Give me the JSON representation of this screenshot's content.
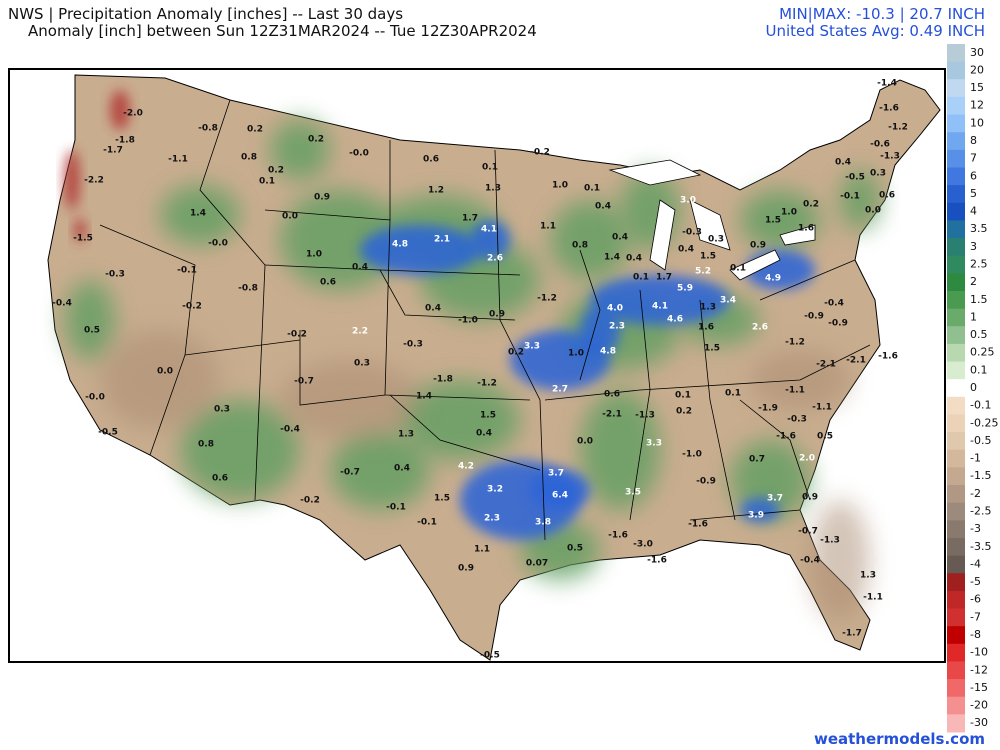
{
  "header": {
    "title": "NWS | Precipitation Anomaly [inches] -- Last 30 days",
    "subtitle": "Anomaly [inch] between Sun 12Z31MAR2024 -- Tue 12Z30APR2024",
    "minmax": "MIN|MAX: -10.3 | 20.7 INCH",
    "average": "United States Avg: 0.49 INCH"
  },
  "colorbar": {
    "labels": [
      30,
      20,
      15,
      12,
      10,
      8,
      7,
      6,
      5,
      4,
      3.5,
      3,
      2.5,
      2,
      1.5,
      1,
      0.5,
      0.25,
      0.1,
      0,
      -0.1,
      -0.25,
      -0.5,
      -1,
      -1.5,
      -2,
      -2.5,
      -3,
      -3.5,
      -4,
      -5,
      -6,
      -7,
      -8,
      -10,
      -12,
      -15,
      -20,
      -30
    ],
    "colors": [
      "#b8ccd8",
      "#a8c8e0",
      "#c0d8f0",
      "#a8d0f8",
      "#90c0f8",
      "#70a8f0",
      "#5890e8",
      "#4078e0",
      "#2860d0",
      "#1850c0",
      "#2070a0",
      "#2a8070",
      "#308a60",
      "#2e8a40",
      "#4a9a50",
      "#6aaa6a",
      "#90c090",
      "#b8d8b0",
      "#d8ecd0",
      "#ffffff",
      "#f3dcc4",
      "#ecd2b6",
      "#e0c8ac",
      "#d4b89c",
      "#c4a890",
      "#b09884",
      "#9c8a7c",
      "#8a7a6e",
      "#786c62",
      "#665a52",
      "#a02020",
      "#c02828",
      "#d03030",
      "#c00000",
      "#e02828",
      "#e84848",
      "#f06868",
      "#f49090",
      "#f8b8b8"
    ]
  },
  "map": {
    "labels": [
      "-2.0",
      "-1.8",
      "-1.7",
      "-2.2",
      "-1.5",
      "-0.3",
      "-0.4",
      "0.5",
      "0.0",
      "-0.0",
      "-0.5",
      "-0.8",
      "0.2",
      "0.8",
      "0.2",
      "0.1",
      "-1.1",
      "1.4",
      "-0.0",
      "-0.1",
      "-0.2",
      "-0.8",
      "0.2",
      "-0.0",
      "0.6",
      "0.1",
      "-0.2",
      "0.9",
      "0.0",
      "1.2",
      "1.3",
      "1.0",
      "0.4",
      "0.6",
      "4.8",
      "2.1",
      "1.7",
      "4.1",
      "2.6",
      "1.1",
      "0.8",
      "1.0",
      "0.1",
      "0.4",
      "0.4",
      "1.4",
      "0.4",
      "3.0",
      "-0.3",
      "0.3",
      "0.4",
      "1.5",
      "0.1",
      "5.2",
      "1.7",
      "0.1",
      "5.9",
      "3.4",
      "4.9",
      "0.9",
      "1.5",
      "1.0",
      "1.6",
      "0.2",
      "-0.4",
      "-0.9",
      "-0.9",
      "-1.2",
      "-2.1",
      "-2.1",
      "-1.6",
      "2.6",
      "4.1",
      "4.6",
      "1.3",
      "1.6",
      "1.5",
      "4.0",
      "2.3",
      "4.8",
      "1.0",
      "-1.2",
      "3.3",
      "0.2",
      "0.9",
      "-1.0",
      "0.4",
      "2.2",
      "-0.2",
      "0.3",
      "-0.3",
      "-0.7",
      "-1.8",
      "-1.2",
      "2.7",
      "0.6",
      "-2.1",
      "-1.3",
      "0.1",
      "0.2",
      "0.1",
      "-1.9",
      "-0.3",
      "-1.1",
      "-1.1",
      "1.4",
      "0.3",
      "-0.4",
      "0.8",
      "0.6",
      "-0.7",
      "1.3",
      "0.4",
      "1.5",
      "0.4",
      "4.2",
      "3.2",
      "3.7",
      "6.4",
      "3.5",
      "3.3",
      "-1.0",
      "-1.6",
      "0.5",
      "0.7",
      "2.0",
      "-0.9",
      "3.7",
      "3.9",
      "0.9",
      "-0.7",
      "-1.3",
      "-1.6",
      "-1.6",
      "-3.0",
      "0.0",
      "2.3",
      "3.8",
      "1.5",
      "-0.1",
      "-0.1",
      "-0.2",
      "1.1",
      "0.5",
      "0.07",
      "0.9",
      "-1.6",
      "-0.4",
      "1.3",
      "-1.1",
      "-1.7",
      "-0.5",
      "-1.4",
      "-1.6",
      "-1.2",
      "-0.6",
      "-1.3",
      "0.4",
      "-0.5",
      "0.3",
      "0.6",
      "-0.1",
      "0.0"
    ]
  },
  "footer": "weathermodels.com"
}
